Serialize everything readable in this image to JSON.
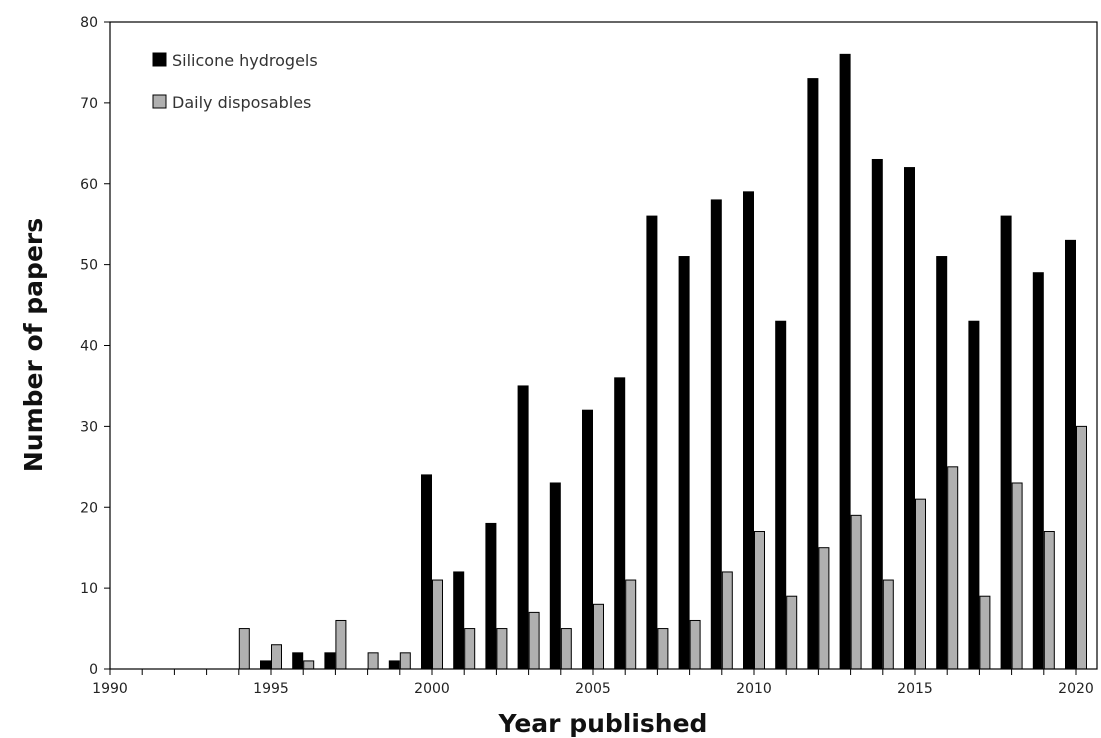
{
  "chart_data": {
    "type": "bar",
    "xlabel": "Year published",
    "ylabel": "Number of papers",
    "categories": [
      1990,
      1991,
      1992,
      1993,
      1994,
      1995,
      1996,
      1997,
      1998,
      1999,
      2000,
      2001,
      2002,
      2003,
      2004,
      2005,
      2006,
      2007,
      2008,
      2009,
      2010,
      2011,
      2012,
      2013,
      2014,
      2015,
      2016,
      2017,
      2018,
      2019,
      2020
    ],
    "x_tick_labels": [
      "1990",
      "1995",
      "2000",
      "2005",
      "2010",
      "2015",
      "2020"
    ],
    "y_tick_labels": [
      "0",
      "10",
      "20",
      "30",
      "40",
      "50",
      "60",
      "70",
      "80"
    ],
    "ylim": [
      0,
      80
    ],
    "grid": false,
    "legend_position": "top-left",
    "series": [
      {
        "name": "Silicone hydrogels",
        "color": "#000000",
        "values": [
          0,
          0,
          0,
          0,
          0,
          1,
          2,
          2,
          0,
          1,
          24,
          12,
          18,
          35,
          23,
          32,
          36,
          56,
          51,
          58,
          59,
          43,
          73,
          76,
          63,
          62,
          51,
          43,
          56,
          49,
          53
        ]
      },
      {
        "name": "Daily disposables",
        "color": "#b0b0b0",
        "values": [
          0,
          0,
          0,
          0,
          5,
          3,
          1,
          6,
          2,
          2,
          11,
          5,
          5,
          7,
          5,
          8,
          11,
          5,
          6,
          12,
          17,
          9,
          15,
          19,
          11,
          21,
          25,
          9,
          23,
          17,
          30
        ]
      }
    ]
  }
}
